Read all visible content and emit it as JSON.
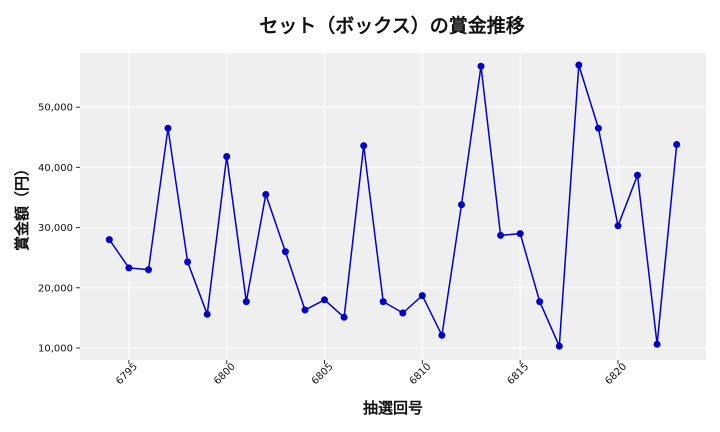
{
  "chart_data": {
    "type": "line",
    "title": "セット（ボックス）の賞金推移",
    "xlabel": "抽選回号",
    "ylabel": "賞金額（円）",
    "xlim": [
      6792.5,
      6824.5
    ],
    "ylim": [
      8000,
      59000
    ],
    "x_ticks": [
      6795,
      6800,
      6805,
      6810,
      6815,
      6820
    ],
    "y_ticks": [
      10000,
      20000,
      30000,
      40000,
      50000
    ],
    "y_tick_labels": [
      "10,000",
      "20,000",
      "30,000",
      "40,000",
      "50,000"
    ],
    "grid": true,
    "line_color": "#0000cc",
    "background_color": "#efefef",
    "series": [
      {
        "x": [
          6794,
          6795,
          6796,
          6797,
          6798,
          6799,
          6800,
          6801,
          6802,
          6803,
          6804,
          6805,
          6806,
          6807,
          6808,
          6809,
          6810,
          6811,
          6812,
          6813,
          6814,
          6815,
          6816,
          6817,
          6818,
          6819,
          6820,
          6821,
          6822,
          6823
        ],
        "values": [
          28000,
          23300,
          23000,
          46500,
          24300,
          15600,
          41800,
          17700,
          35500,
          26000,
          16300,
          18000,
          15100,
          43600,
          17700,
          15800,
          18700,
          12100,
          33800,
          56800,
          28700,
          29000,
          17700,
          10300,
          57000,
          46500,
          30300,
          38700,
          10600,
          43800
        ]
      }
    ]
  }
}
